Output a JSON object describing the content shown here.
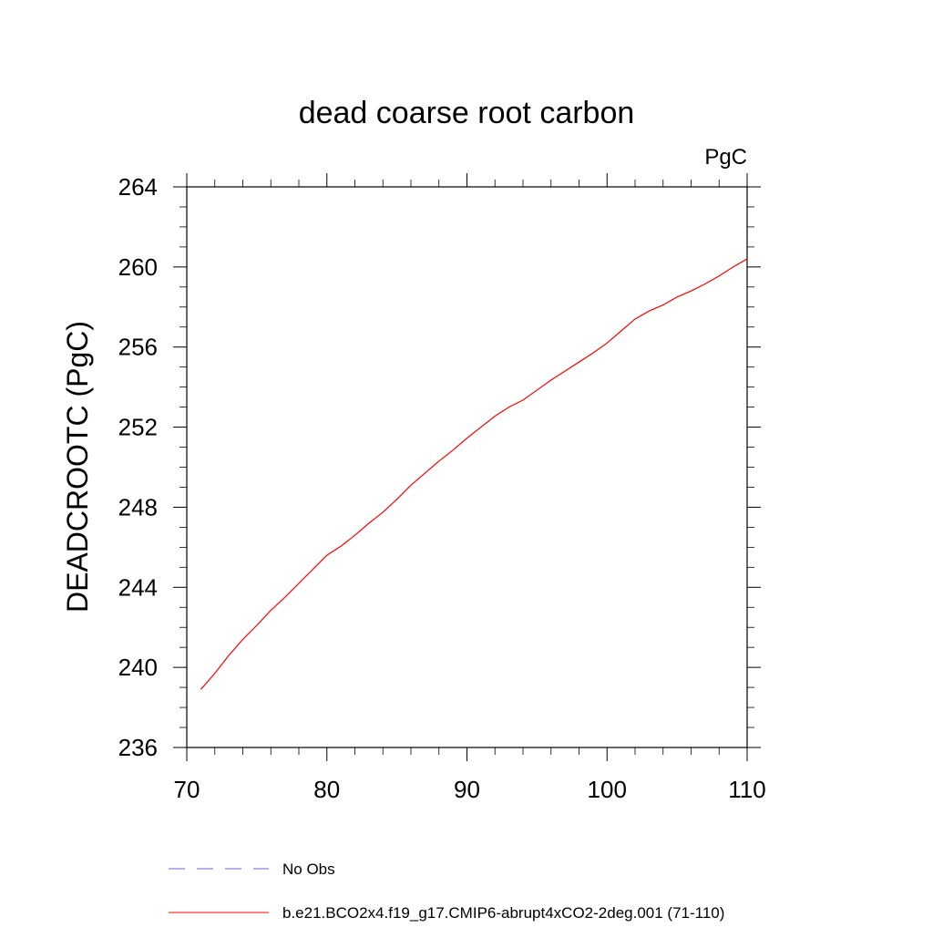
{
  "chart_data": {
    "type": "line",
    "title": "dead coarse root carbon",
    "units_label": "PgC",
    "xlabel": "",
    "ylabel": "DEADCROOTC  (PgC)",
    "xlim": [
      70,
      110
    ],
    "ylim": [
      236,
      264
    ],
    "x_ticks": [
      70,
      80,
      90,
      100,
      110
    ],
    "y_ticks": [
      236,
      240,
      244,
      248,
      252,
      256,
      260,
      264
    ],
    "x_tick_labels": [
      "70",
      "80",
      "90",
      "100",
      "110"
    ],
    "y_tick_labels": [
      "236",
      "240",
      "244",
      "248",
      "252",
      "256",
      "260",
      "264"
    ],
    "grid": false,
    "legend_placement": "bottom",
    "series": [
      {
        "name": "No Obs",
        "color": "#6666cc",
        "dash": "dashed",
        "x": [],
        "y": []
      },
      {
        "name": "b.e21.BCO2x4.f19_g17.CMIP6-abrupt4xCO2-2deg.001 (71-110)",
        "color": "#ff0000",
        "dash": "solid",
        "x": [
          71,
          72,
          73,
          74,
          75,
          76,
          77,
          78,
          79,
          80,
          81,
          82,
          83,
          84,
          85,
          86,
          87,
          88,
          89,
          90,
          91,
          92,
          93,
          94,
          95,
          96,
          97,
          98,
          99,
          100,
          101,
          102,
          103,
          104,
          105,
          106,
          107,
          108,
          109,
          110
        ],
        "y": [
          238.9,
          239.7,
          240.6,
          241.4,
          242.1,
          242.85,
          243.5,
          244.2,
          244.9,
          245.6,
          246.05,
          246.6,
          247.2,
          247.75,
          248.4,
          249.1,
          249.7,
          250.3,
          250.85,
          251.45,
          252.0,
          252.55,
          253.0,
          253.35,
          253.85,
          254.35,
          254.8,
          255.25,
          255.7,
          256.2,
          256.8,
          257.4,
          257.8,
          258.1,
          258.5,
          258.8,
          259.15,
          259.55,
          260.0,
          260.4
        ]
      }
    ]
  }
}
